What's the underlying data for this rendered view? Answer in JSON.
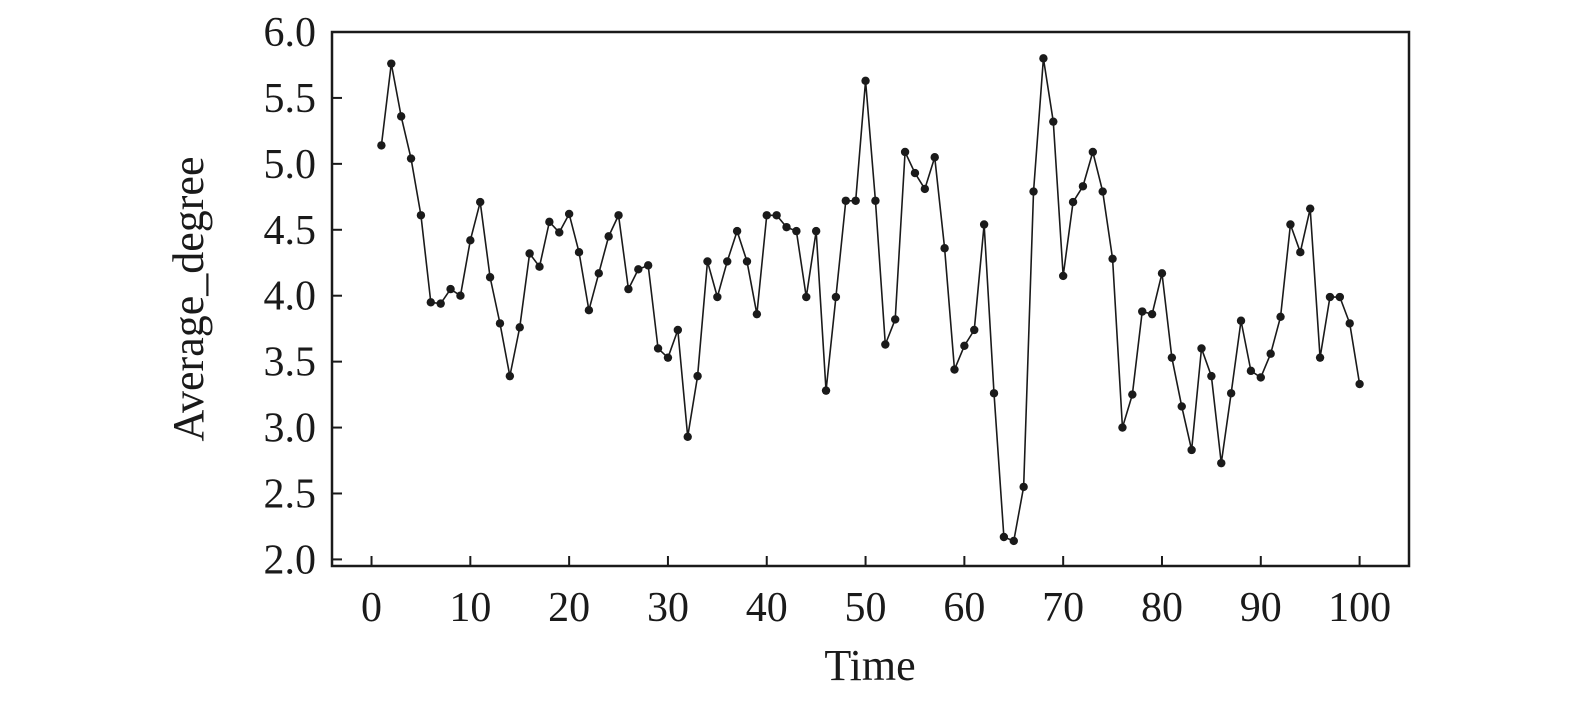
{
  "chart_data": {
    "type": "line",
    "title": "",
    "xlabel": "Time",
    "ylabel": "Average_degree",
    "xlim": [
      -4,
      105
    ],
    "ylim": [
      1.95,
      6.0
    ],
    "xticks": [
      0,
      10,
      20,
      30,
      40,
      50,
      60,
      70,
      80,
      90,
      100
    ],
    "xtick_labels": [
      "0",
      "10",
      "20",
      "30",
      "40",
      "50",
      "60",
      "70",
      "80",
      "90",
      "100"
    ],
    "yticks": [
      2.0,
      2.5,
      3.0,
      3.5,
      4.0,
      4.5,
      5.0,
      5.5,
      6.0
    ],
    "ytick_labels": [
      "2.0",
      "2.5",
      "3.0",
      "3.5",
      "4.0",
      "4.5",
      "5.0",
      "5.5",
      "6.0"
    ],
    "grid": false,
    "legend": "none",
    "colors": {
      "line": "#1a1a1a",
      "marker": "#1a1a1a"
    },
    "series": [
      {
        "x": [
          1,
          2,
          3,
          4,
          5,
          6,
          7,
          8,
          9,
          10,
          11,
          12,
          13,
          14,
          15,
          16,
          17,
          18,
          19,
          20,
          21,
          22,
          23,
          24,
          25,
          26,
          27,
          28,
          29,
          30,
          31,
          32,
          33,
          34,
          35,
          36,
          37,
          38,
          39,
          40,
          41,
          42,
          43,
          44,
          45,
          46,
          47,
          48,
          49,
          50,
          51,
          52,
          53,
          54,
          55,
          56,
          57,
          58,
          59,
          60,
          61,
          62,
          63,
          64,
          65,
          66,
          67,
          68,
          69,
          70,
          71,
          72,
          73,
          74,
          75,
          76,
          77,
          78,
          79,
          80,
          81,
          82,
          83,
          84,
          85,
          86,
          87,
          88,
          89,
          90,
          91,
          92,
          93,
          94,
          95,
          96,
          97,
          98,
          99,
          100
        ],
        "values": [
          5.14,
          5.76,
          5.36,
          5.04,
          4.61,
          3.95,
          3.94,
          4.05,
          4.0,
          4.42,
          4.71,
          4.14,
          3.79,
          3.39,
          3.76,
          4.32,
          4.22,
          4.56,
          4.48,
          4.62,
          4.33,
          3.89,
          4.17,
          4.45,
          4.61,
          4.05,
          4.2,
          4.23,
          3.6,
          3.53,
          3.74,
          2.93,
          3.39,
          4.26,
          3.99,
          4.26,
          4.49,
          4.26,
          3.86,
          4.61,
          4.61,
          4.52,
          4.49,
          3.99,
          4.49,
          3.28,
          3.99,
          4.72,
          4.72,
          5.63,
          4.72,
          3.63,
          3.82,
          5.09,
          4.93,
          4.81,
          5.05,
          4.36,
          3.44,
          3.62,
          3.74,
          4.54,
          3.26,
          2.17,
          2.14,
          2.55,
          4.79,
          5.8,
          5.32,
          4.15,
          4.71,
          4.83,
          5.09,
          4.79,
          4.28,
          3.0,
          3.25,
          3.88,
          3.86,
          4.17,
          3.53,
          3.16,
          2.83,
          3.6,
          3.39,
          2.73,
          3.26,
          3.81,
          3.43,
          3.38,
          3.56,
          3.84,
          4.54,
          4.33,
          4.66,
          3.53,
          3.99,
          3.99,
          3.79,
          3.33
        ]
      }
    ]
  }
}
